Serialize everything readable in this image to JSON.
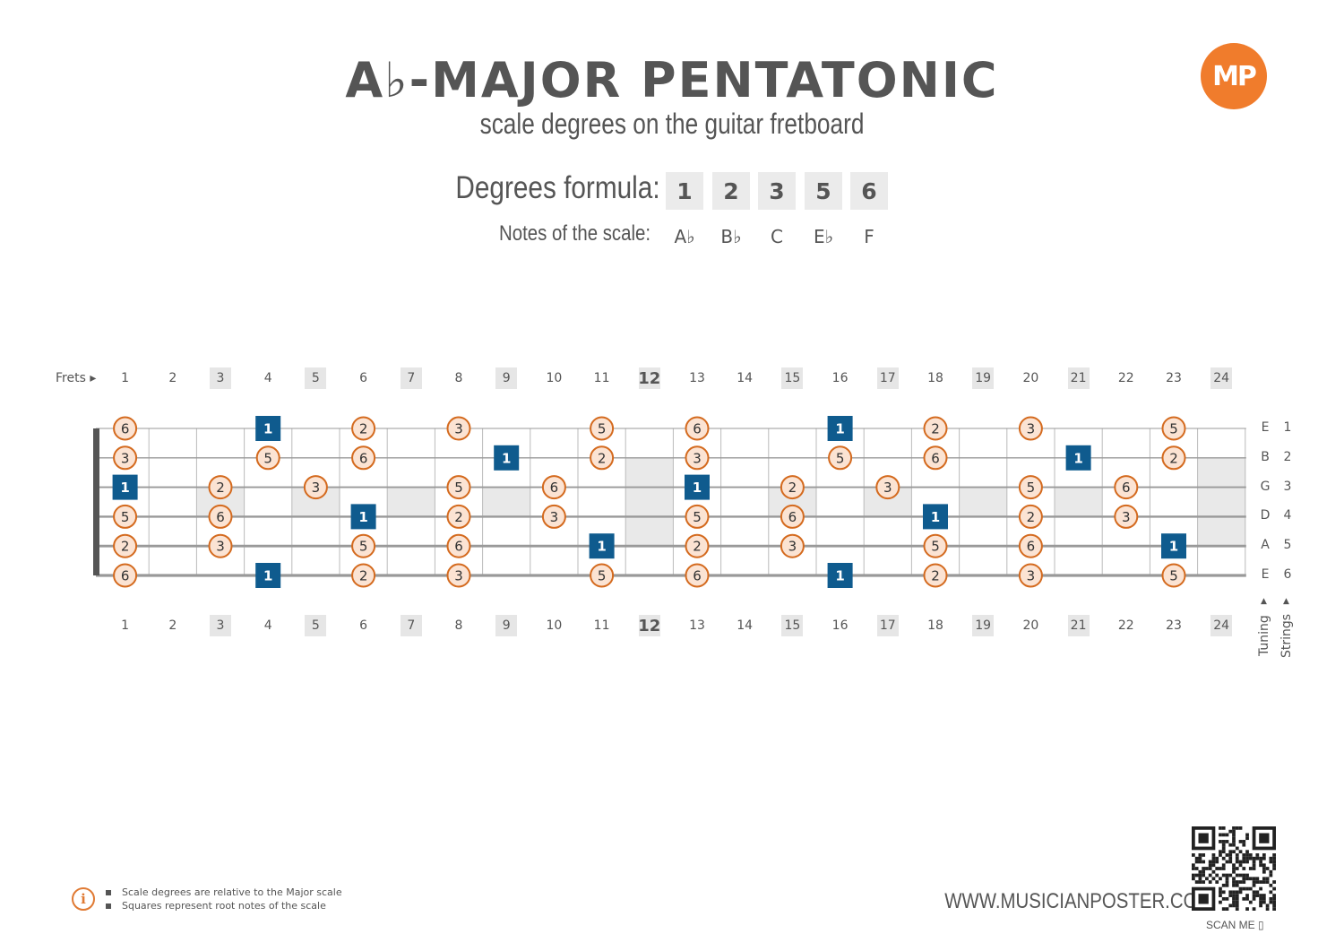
{
  "header": {
    "title": "A♭-MAJOR PENTATONIC",
    "subtitle": "scale degrees on the guitar fretboard",
    "logo_text": "MP"
  },
  "formula": {
    "degrees_label": "Degrees formula:",
    "degrees": [
      "1",
      "2",
      "3",
      "5",
      "6"
    ],
    "notes_label": "Notes of the scale:",
    "notes": [
      "A♭",
      "B♭",
      "C",
      "E♭",
      "F"
    ]
  },
  "fretboard": {
    "frets_label": "Frets ▸",
    "fret_numbers": [
      "1",
      "2",
      "3",
      "4",
      "5",
      "6",
      "7",
      "8",
      "9",
      "10",
      "11",
      "12",
      "13",
      "14",
      "15",
      "16",
      "17",
      "18",
      "19",
      "20",
      "21",
      "22",
      "23",
      "24"
    ],
    "inlay_frets": [
      3,
      5,
      7,
      9,
      12,
      15,
      17,
      19,
      21,
      24
    ],
    "bold_fret": 12,
    "strings": [
      {
        "index": "1",
        "tuning": "E"
      },
      {
        "index": "2",
        "tuning": "B"
      },
      {
        "index": "3",
        "tuning": "G"
      },
      {
        "index": "4",
        "tuning": "D"
      },
      {
        "index": "5",
        "tuning": "A"
      },
      {
        "index": "6",
        "tuning": "E"
      }
    ],
    "tuning_label": "Tuning",
    "strings_label": "Strings",
    "arrow": "▲",
    "colors": {
      "circle_fill": "#fbe3d3",
      "circle_stroke": "#d46a1e",
      "root_fill": "#0f5b8e",
      "inlay_fill": "#e9e9e9",
      "line": "#aaaaaa",
      "string": "#999999"
    },
    "positions": [
      {
        "string": 1,
        "fret": 1,
        "degree": "6",
        "root": false
      },
      {
        "string": 1,
        "fret": 4,
        "degree": "1",
        "root": true
      },
      {
        "string": 1,
        "fret": 6,
        "degree": "2",
        "root": false
      },
      {
        "string": 1,
        "fret": 8,
        "degree": "3",
        "root": false
      },
      {
        "string": 1,
        "fret": 11,
        "degree": "5",
        "root": false
      },
      {
        "string": 1,
        "fret": 13,
        "degree": "6",
        "root": false
      },
      {
        "string": 1,
        "fret": 16,
        "degree": "1",
        "root": true
      },
      {
        "string": 1,
        "fret": 18,
        "degree": "2",
        "root": false
      },
      {
        "string": 1,
        "fret": 20,
        "degree": "3",
        "root": false
      },
      {
        "string": 1,
        "fret": 23,
        "degree": "5",
        "root": false
      },
      {
        "string": 2,
        "fret": 1,
        "degree": "3",
        "root": false
      },
      {
        "string": 2,
        "fret": 4,
        "degree": "5",
        "root": false
      },
      {
        "string": 2,
        "fret": 6,
        "degree": "6",
        "root": false
      },
      {
        "string": 2,
        "fret": 9,
        "degree": "1",
        "root": true
      },
      {
        "string": 2,
        "fret": 11,
        "degree": "2",
        "root": false
      },
      {
        "string": 2,
        "fret": 13,
        "degree": "3",
        "root": false
      },
      {
        "string": 2,
        "fret": 16,
        "degree": "5",
        "root": false
      },
      {
        "string": 2,
        "fret": 18,
        "degree": "6",
        "root": false
      },
      {
        "string": 2,
        "fret": 21,
        "degree": "1",
        "root": true
      },
      {
        "string": 2,
        "fret": 23,
        "degree": "2",
        "root": false
      },
      {
        "string": 3,
        "fret": 1,
        "degree": "1",
        "root": true
      },
      {
        "string": 3,
        "fret": 3,
        "degree": "2",
        "root": false
      },
      {
        "string": 3,
        "fret": 5,
        "degree": "3",
        "root": false
      },
      {
        "string": 3,
        "fret": 8,
        "degree": "5",
        "root": false
      },
      {
        "string": 3,
        "fret": 10,
        "degree": "6",
        "root": false
      },
      {
        "string": 3,
        "fret": 13,
        "degree": "1",
        "root": true
      },
      {
        "string": 3,
        "fret": 15,
        "degree": "2",
        "root": false
      },
      {
        "string": 3,
        "fret": 17,
        "degree": "3",
        "root": false
      },
      {
        "string": 3,
        "fret": 20,
        "degree": "5",
        "root": false
      },
      {
        "string": 3,
        "fret": 22,
        "degree": "6",
        "root": false
      },
      {
        "string": 4,
        "fret": 1,
        "degree": "5",
        "root": false
      },
      {
        "string": 4,
        "fret": 3,
        "degree": "6",
        "root": false
      },
      {
        "string": 4,
        "fret": 6,
        "degree": "1",
        "root": true
      },
      {
        "string": 4,
        "fret": 8,
        "degree": "2",
        "root": false
      },
      {
        "string": 4,
        "fret": 10,
        "degree": "3",
        "root": false
      },
      {
        "string": 4,
        "fret": 13,
        "degree": "5",
        "root": false
      },
      {
        "string": 4,
        "fret": 15,
        "degree": "6",
        "root": false
      },
      {
        "string": 4,
        "fret": 18,
        "degree": "1",
        "root": true
      },
      {
        "string": 4,
        "fret": 20,
        "degree": "2",
        "root": false
      },
      {
        "string": 4,
        "fret": 22,
        "degree": "3",
        "root": false
      },
      {
        "string": 5,
        "fret": 1,
        "degree": "2",
        "root": false
      },
      {
        "string": 5,
        "fret": 3,
        "degree": "3",
        "root": false
      },
      {
        "string": 5,
        "fret": 6,
        "degree": "5",
        "root": false
      },
      {
        "string": 5,
        "fret": 8,
        "degree": "6",
        "root": false
      },
      {
        "string": 5,
        "fret": 11,
        "degree": "1",
        "root": true
      },
      {
        "string": 5,
        "fret": 13,
        "degree": "2",
        "root": false
      },
      {
        "string": 5,
        "fret": 15,
        "degree": "3",
        "root": false
      },
      {
        "string": 5,
        "fret": 18,
        "degree": "5",
        "root": false
      },
      {
        "string": 5,
        "fret": 20,
        "degree": "6",
        "root": false
      },
      {
        "string": 5,
        "fret": 23,
        "degree": "1",
        "root": true
      },
      {
        "string": 6,
        "fret": 1,
        "degree": "6",
        "root": false
      },
      {
        "string": 6,
        "fret": 4,
        "degree": "1",
        "root": true
      },
      {
        "string": 6,
        "fret": 6,
        "degree": "2",
        "root": false
      },
      {
        "string": 6,
        "fret": 8,
        "degree": "3",
        "root": false
      },
      {
        "string": 6,
        "fret": 11,
        "degree": "5",
        "root": false
      },
      {
        "string": 6,
        "fret": 13,
        "degree": "6",
        "root": false
      },
      {
        "string": 6,
        "fret": 16,
        "degree": "1",
        "root": true
      },
      {
        "string": 6,
        "fret": 18,
        "degree": "2",
        "root": false
      },
      {
        "string": 6,
        "fret": 20,
        "degree": "3",
        "root": false
      },
      {
        "string": 6,
        "fret": 23,
        "degree": "5",
        "root": false
      }
    ]
  },
  "footer": {
    "notes": [
      "Scale degrees are relative to the Major scale",
      "Squares represent root notes of the scale"
    ],
    "info_icon": "i",
    "website": "WWW.MUSICIANPOSTER.COM",
    "scan_label": "SCAN ME",
    "phone_icon": "▯"
  }
}
